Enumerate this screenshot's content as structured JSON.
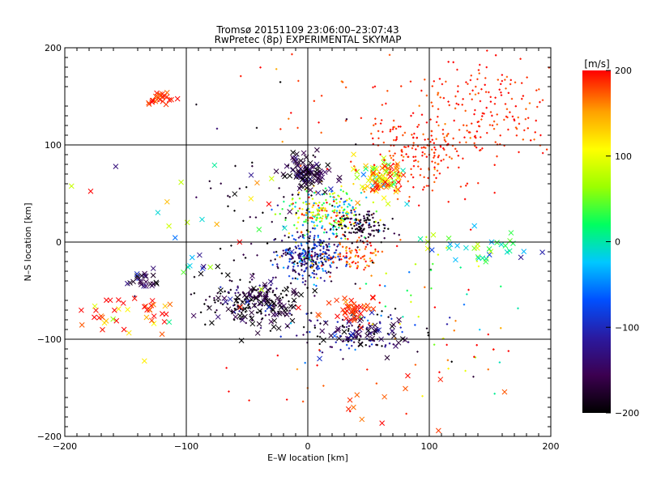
{
  "chart_data": {
    "type": "scatter",
    "title": "Tromsø 20151109 23:06:00–23:07:43",
    "subtitle": "RwPretec (8p) EXPERIMENTAL SKYMAP",
    "xlabel": "E–W location [km]",
    "ylabel": "N–S location [km]",
    "xlim": [
      -200,
      200
    ],
    "ylim": [
      -200,
      200
    ],
    "xticks": [
      -200,
      -100,
      0,
      100,
      200
    ],
    "yticks": [
      -200,
      -100,
      0,
      100,
      200
    ],
    "xtick_labels": [
      "−200",
      "−100",
      "0",
      "100",
      "200"
    ],
    "ytick_labels": [
      "−200",
      "−100",
      "0",
      "100",
      "200"
    ],
    "grid": true,
    "colorbar": {
      "label": "[m/s]",
      "range": [
        -200,
        200
      ],
      "ticks": [
        200,
        100,
        0,
        -100,
        -200
      ],
      "tick_labels": [
        "200",
        "100",
        "0",
        "−100",
        "−200"
      ],
      "colors": [
        "#000000",
        "#3c0050",
        "#2a1aa0",
        "#0050ff",
        "#00c8ff",
        "#00ff60",
        "#9bff00",
        "#ffff00",
        "#ffa000",
        "#ff0000"
      ]
    },
    "markers": {
      "dot": "+",
      "cross": "x"
    },
    "clusters": [
      {
        "x": 0,
        "y": -15,
        "sx": 14,
        "sy": 12,
        "v": -110,
        "vs": 50,
        "n": 300,
        "m": "dot"
      },
      {
        "x": 15,
        "y": 30,
        "sx": 18,
        "sy": 12,
        "v": 60,
        "vs": 80,
        "n": 260,
        "m": "dot"
      },
      {
        "x": 45,
        "y": 15,
        "sx": 12,
        "sy": 8,
        "v": -180,
        "vs": 20,
        "n": 120,
        "m": "dot"
      },
      {
        "x": 0,
        "y": 70,
        "sx": 10,
        "sy": 10,
        "v": -170,
        "vs": 30,
        "n": 90,
        "m": "cross"
      },
      {
        "x": 60,
        "y": 65,
        "sx": 12,
        "sy": 10,
        "v": 130,
        "vs": 70,
        "n": 90,
        "m": "cross"
      },
      {
        "x": 90,
        "y": 90,
        "sx": 25,
        "sy": 20,
        "v": 190,
        "vs": 12,
        "n": 200,
        "m": "dot"
      },
      {
        "x": 150,
        "y": 140,
        "sx": 30,
        "sy": 25,
        "v": 190,
        "vs": 12,
        "n": 180,
        "m": "dot"
      },
      {
        "x": 40,
        "y": -15,
        "sx": 14,
        "sy": 8,
        "v": 180,
        "vs": 25,
        "n": 90,
        "m": "dot"
      },
      {
        "x": -45,
        "y": -60,
        "sx": 18,
        "sy": 12,
        "v": -180,
        "vs": 40,
        "n": 170,
        "m": "dot"
      },
      {
        "x": -40,
        "y": -65,
        "sx": 20,
        "sy": 14,
        "v": -180,
        "vs": 30,
        "n": 90,
        "m": "cross"
      },
      {
        "x": 40,
        "y": -95,
        "sx": 25,
        "sy": 12,
        "v": -150,
        "vs": 60,
        "n": 120,
        "m": "dot"
      },
      {
        "x": 45,
        "y": -95,
        "sx": 20,
        "sy": 10,
        "v": -170,
        "vs": 40,
        "n": 50,
        "m": "cross"
      },
      {
        "x": 35,
        "y": -70,
        "sx": 10,
        "sy": 6,
        "v": 190,
        "vs": 15,
        "n": 40,
        "m": "cross"
      },
      {
        "x": -120,
        "y": 148,
        "sx": 6,
        "sy": 4,
        "v": 190,
        "vs": 10,
        "n": 25,
        "m": "cross"
      },
      {
        "x": -145,
        "y": -75,
        "sx": 22,
        "sy": 10,
        "v": 180,
        "vs": 40,
        "n": 40,
        "m": "cross"
      },
      {
        "x": -135,
        "y": -40,
        "sx": 6,
        "sy": 5,
        "v": -170,
        "vs": 30,
        "n": 25,
        "m": "cross"
      },
      {
        "x": 150,
        "y": -5,
        "sx": 30,
        "sy": 10,
        "v": 20,
        "vs": 60,
        "n": 40,
        "m": "cross"
      },
      {
        "x": -30,
        "y": 30,
        "sx": 40,
        "sy": 40,
        "v": -190,
        "vs": 20,
        "n": 60,
        "m": "dot"
      },
      {
        "x": 90,
        "y": -40,
        "sx": 40,
        "sy": 30,
        "v": 100,
        "vs": 120,
        "n": 40,
        "m": "dot"
      },
      {
        "x": 120,
        "y": -110,
        "sx": 25,
        "sy": 30,
        "v": 50,
        "vs": 120,
        "n": 30,
        "m": "dot"
      },
      {
        "x": 40,
        "y": 150,
        "sx": 40,
        "sy": 30,
        "v": 190,
        "vs": 20,
        "n": 30,
        "m": "dot"
      },
      {
        "x": 100,
        "y": -170,
        "sx": 40,
        "sy": 20,
        "v": 190,
        "vs": 15,
        "n": 15,
        "m": "cross"
      },
      {
        "x": 0,
        "y": -140,
        "sx": 60,
        "sy": 20,
        "v": 190,
        "vs": 20,
        "n": 15,
        "m": "dot"
      },
      {
        "x": -100,
        "y": 0,
        "sx": 50,
        "sy": 50,
        "v": 0,
        "vs": 130,
        "n": 40,
        "m": "cross"
      }
    ]
  }
}
